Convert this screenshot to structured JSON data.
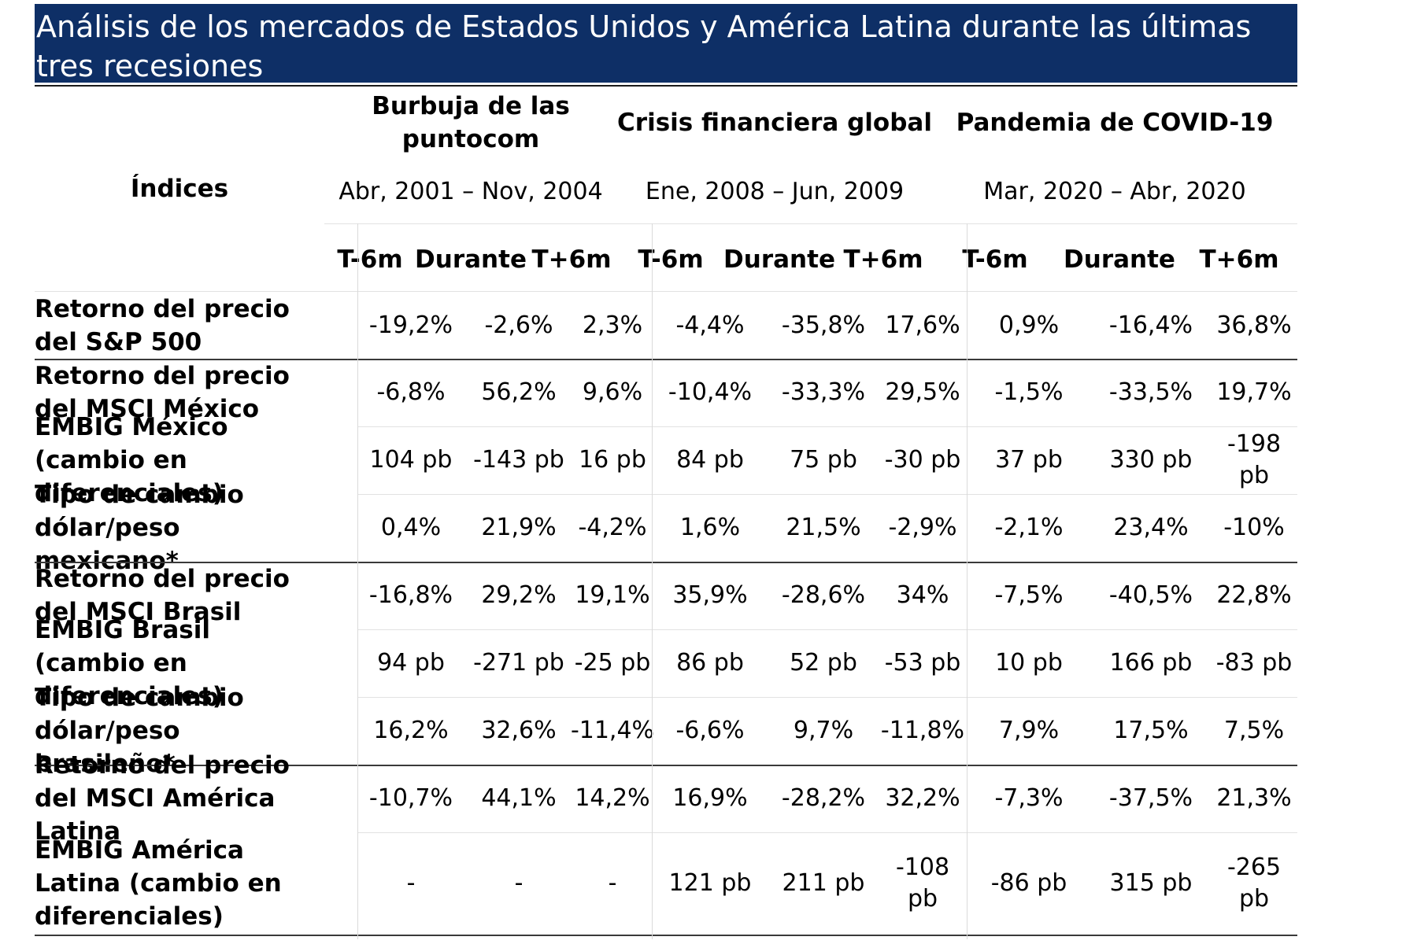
{
  "title": "Análisis de los mercados de Estados Unidos y América Latina durante las últimas tres recesiones",
  "index_header": "Índices",
  "periods": [
    {
      "name": "Burbuja de las puntocom",
      "dates": "Abr, 2001 – Nov, 2004"
    },
    {
      "name": "Crisis financiera global",
      "dates": "Ene, 2008 – Jun, 2009"
    },
    {
      "name": "Pandemia de COVID-19",
      "dates": "Mar, 2020 – Abr, 2020"
    }
  ],
  "subheaders": [
    "T-6m",
    "Durante",
    "T+6m"
  ],
  "rows": [
    {
      "label": "Retorno del precio del S&P 500",
      "values": [
        "-19,2%",
        "-2,6%",
        "2,3%",
        "-4,4%",
        "-35,8%",
        "17,6%",
        "0,9%",
        "-16,4%",
        "36,8%"
      ]
    },
    {
      "label": "Retorno del precio del MSCI México",
      "values": [
        "-6,8%",
        "56,2%",
        "9,6%",
        "-10,4%",
        "-33,3%",
        "29,5%",
        "-1,5%",
        "-33,5%",
        "19,7%"
      ]
    },
    {
      "label": "EMBIG México (cambio en diferenciales)",
      "values": [
        "104 pb",
        "-143 pb",
        "16 pb",
        "84 pb",
        "75 pb",
        "-30 pb",
        "37 pb",
        "330 pb",
        "-198 pb"
      ]
    },
    {
      "label": "Tipo de cambio dólar/peso mexicano*",
      "values": [
        "0,4%",
        "21,9%",
        "-4,2%",
        "1,6%",
        "21,5%",
        "-2,9%",
        "-2,1%",
        "23,4%",
        "-10%"
      ]
    },
    {
      "label": "Retorno del precio del MSCI Brasil",
      "values": [
        "-16,8%",
        "29,2%",
        "19,1%",
        "35,9%",
        "-28,6%",
        "34%",
        "-7,5%",
        "-40,5%",
        "22,8%"
      ]
    },
    {
      "label": "EMBIG Brasil (cambio en diferenciales)",
      "values": [
        "94 pb",
        "-271 pb",
        "-25 pb",
        "86 pb",
        "52 pb",
        "-53 pb",
        "10 pb",
        "166 pb",
        "-83 pb"
      ]
    },
    {
      "label": "Tipo de cambio dólar/peso brasileño*",
      "values": [
        "16,2%",
        "32,6%",
        "-11,4%",
        "-6,6%",
        "9,7%",
        "-11,8%",
        "7,9%",
        "17,5%",
        "7,5%"
      ]
    },
    {
      "label": "Retorno del precio del MSCI América Latina",
      "values": [
        "-10,7%",
        "44,1%",
        "14,2%",
        "16,9%",
        "-28,2%",
        "32,2%",
        "-7,3%",
        "-37,5%",
        "21,3%"
      ]
    },
    {
      "label": "EMBIG América Latina (cambio en diferenciales)",
      "values": [
        "-",
        "-",
        "-",
        "121 pb",
        "211 pb",
        "-108 pb",
        "-86 pb",
        "315 pb",
        "-265 pb"
      ]
    }
  ],
  "colors": {
    "title_bg": "#0e2f66",
    "title_text": "#ffffff"
  }
}
